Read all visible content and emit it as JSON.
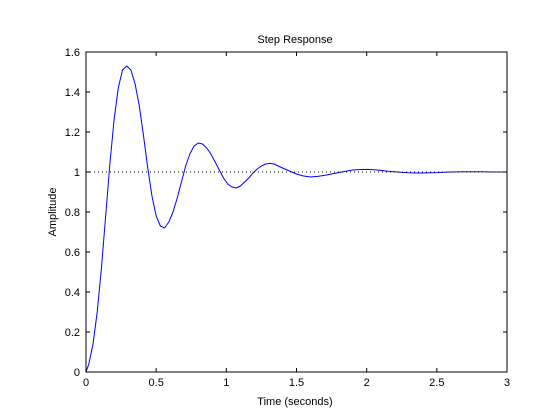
{
  "chart_data": {
    "type": "line",
    "title": "Step Response",
    "xlabel": "Time (seconds)",
    "ylabel": "Amplitude",
    "xlim": [
      0,
      3
    ],
    "ylim": [
      0,
      1.6
    ],
    "x_ticks": [
      0,
      0.5,
      1,
      1.5,
      2,
      2.5,
      3
    ],
    "x_tick_labels": [
      "0",
      "0.5",
      "1",
      "1.5",
      "2",
      "2.5",
      "3"
    ],
    "y_ticks": [
      0,
      0.2,
      0.4,
      0.6,
      0.8,
      1,
      1.2,
      1.4,
      1.6
    ],
    "y_tick_labels": [
      "0",
      "0.2",
      "0.4",
      "0.6",
      "0.8",
      "1",
      "1.2",
      "1.4",
      "1.6"
    ],
    "grid": false,
    "series": [
      {
        "color": "#0000ff",
        "style": "solid",
        "x": [
          0,
          0.02,
          0.05,
          0.08,
          0.11,
          0.14,
          0.17,
          0.2,
          0.23,
          0.26,
          0.29,
          0.32,
          0.35,
          0.38,
          0.41,
          0.44,
          0.47,
          0.5,
          0.53,
          0.56,
          0.59,
          0.62,
          0.65,
          0.68,
          0.71,
          0.74,
          0.77,
          0.8,
          0.83,
          0.86,
          0.89,
          0.92,
          0.95,
          0.98,
          1.01,
          1.04,
          1.07,
          1.1,
          1.13,
          1.16,
          1.19,
          1.22,
          1.25,
          1.28,
          1.31,
          1.34,
          1.37,
          1.4,
          1.45,
          1.5,
          1.55,
          1.6,
          1.65,
          1.7,
          1.75,
          1.8,
          1.85,
          1.9,
          1.95,
          2.0,
          2.05,
          2.1,
          2.15,
          2.2,
          2.25,
          2.3,
          2.35,
          2.4,
          2.45,
          2.5,
          2.55,
          2.6,
          2.7,
          2.8,
          2.9,
          3.0
        ],
        "y": [
          0,
          0.04,
          0.14,
          0.3,
          0.52,
          0.78,
          1.04,
          1.26,
          1.42,
          1.51,
          1.53,
          1.51,
          1.44,
          1.33,
          1.18,
          1.02,
          0.88,
          0.78,
          0.73,
          0.72,
          0.75,
          0.8,
          0.87,
          0.95,
          1.03,
          1.09,
          1.13,
          1.145,
          1.14,
          1.12,
          1.09,
          1.05,
          1.01,
          0.97,
          0.94,
          0.925,
          0.92,
          0.93,
          0.95,
          0.97,
          0.995,
          1.015,
          1.03,
          1.04,
          1.043,
          1.04,
          1.03,
          1.02,
          1.005,
          0.99,
          0.98,
          0.975,
          0.978,
          0.983,
          0.99,
          0.997,
          1.004,
          1.01,
          1.012,
          1.013,
          1.011,
          1.008,
          1.004,
          1.001,
          0.998,
          0.996,
          0.995,
          0.995,
          0.996,
          0.997,
          0.999,
          1.0,
          1.001,
          1.001,
          1.0,
          1.0
        ]
      },
      {
        "color": "#000000",
        "style": "dotted",
        "x": [
          0,
          3
        ],
        "y": [
          1,
          1
        ]
      }
    ]
  }
}
